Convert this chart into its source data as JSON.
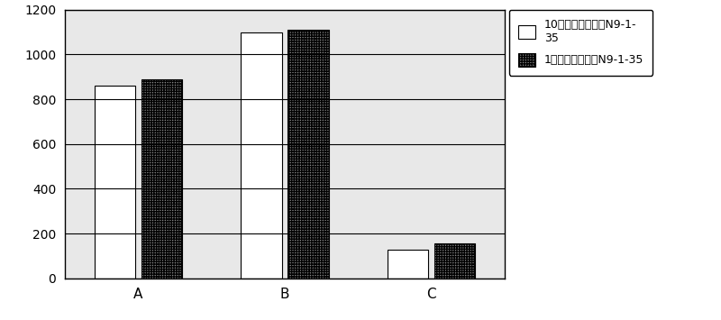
{
  "categories": [
    "A",
    "B",
    "C"
  ],
  "series1_values": [
    860,
    1100,
    130
  ],
  "series2_values": [
    890,
    1110,
    155
  ],
  "series1_label": "10代枯草芽孢杆菌N9-1-\n35",
  "series2_label": "1代枯草芽孢杆菌N9-1-35",
  "ylim": [
    0,
    1200
  ],
  "yticks": [
    0,
    200,
    400,
    600,
    800,
    1000,
    1200
  ],
  "bar_width": 0.28,
  "background_color": "#ffffff",
  "title": "",
  "xlabel": "",
  "ylabel": ""
}
